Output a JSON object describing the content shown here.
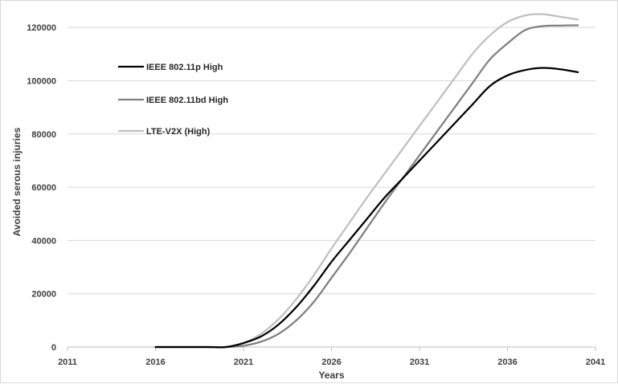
{
  "chart_data": {
    "type": "line",
    "title": "",
    "xlabel": "Years",
    "ylabel": "Avoided serous injuries",
    "xlim": [
      2011,
      2041
    ],
    "ylim": [
      0,
      130000
    ],
    "x_ticks": [
      2011,
      2016,
      2021,
      2026,
      2031,
      2036,
      2041
    ],
    "y_ticks": [
      0,
      20000,
      40000,
      60000,
      80000,
      100000,
      120000
    ],
    "x_tick_labels": [
      "2011",
      "2016",
      "2021",
      "2026",
      "2031",
      "2036",
      "2041"
    ],
    "y_tick_labels": [
      "0",
      "20000",
      "40000",
      "60000",
      "80000",
      "100000",
      "120000"
    ],
    "grid": "horizontal",
    "legend_placement": "upper-left inside",
    "x": [
      2016,
      2017,
      2018,
      2019,
      2020,
      2021,
      2022,
      2023,
      2024,
      2025,
      2026,
      2027,
      2028,
      2029,
      2030,
      2031,
      2032,
      2033,
      2034,
      2035,
      2036,
      2037,
      2038,
      2039,
      2040
    ],
    "series": [
      {
        "name": "IEEE 802.11p High",
        "color": "#000000",
        "values": [
          0,
          0,
          0,
          0,
          0,
          1500,
          4000,
          8500,
          15000,
          23000,
          32000,
          40000,
          48000,
          56000,
          63000,
          70000,
          77000,
          84000,
          91000,
          98000,
          102000,
          104000,
          104800,
          104300,
          103200
        ]
      },
      {
        "name": "IEEE 802.11bd High",
        "color": "#7f7f7f",
        "values": [
          0,
          0,
          0,
          0,
          0,
          500,
          2000,
          5000,
          10000,
          17000,
          26000,
          35000,
          44500,
          54000,
          63000,
          72000,
          81000,
          90000,
          99000,
          108000,
          114000,
          119000,
          120500,
          120700,
          120800
        ]
      },
      {
        "name": "LTE-V2X (High)",
        "color": "#bfbfbf",
        "values": [
          0,
          0,
          0,
          0,
          0,
          1500,
          5000,
          10500,
          18000,
          27000,
          37000,
          46500,
          56000,
          65000,
          74000,
          83000,
          92000,
          101000,
          110000,
          117000,
          122000,
          124500,
          125000,
          124000,
          123000
        ]
      }
    ]
  }
}
